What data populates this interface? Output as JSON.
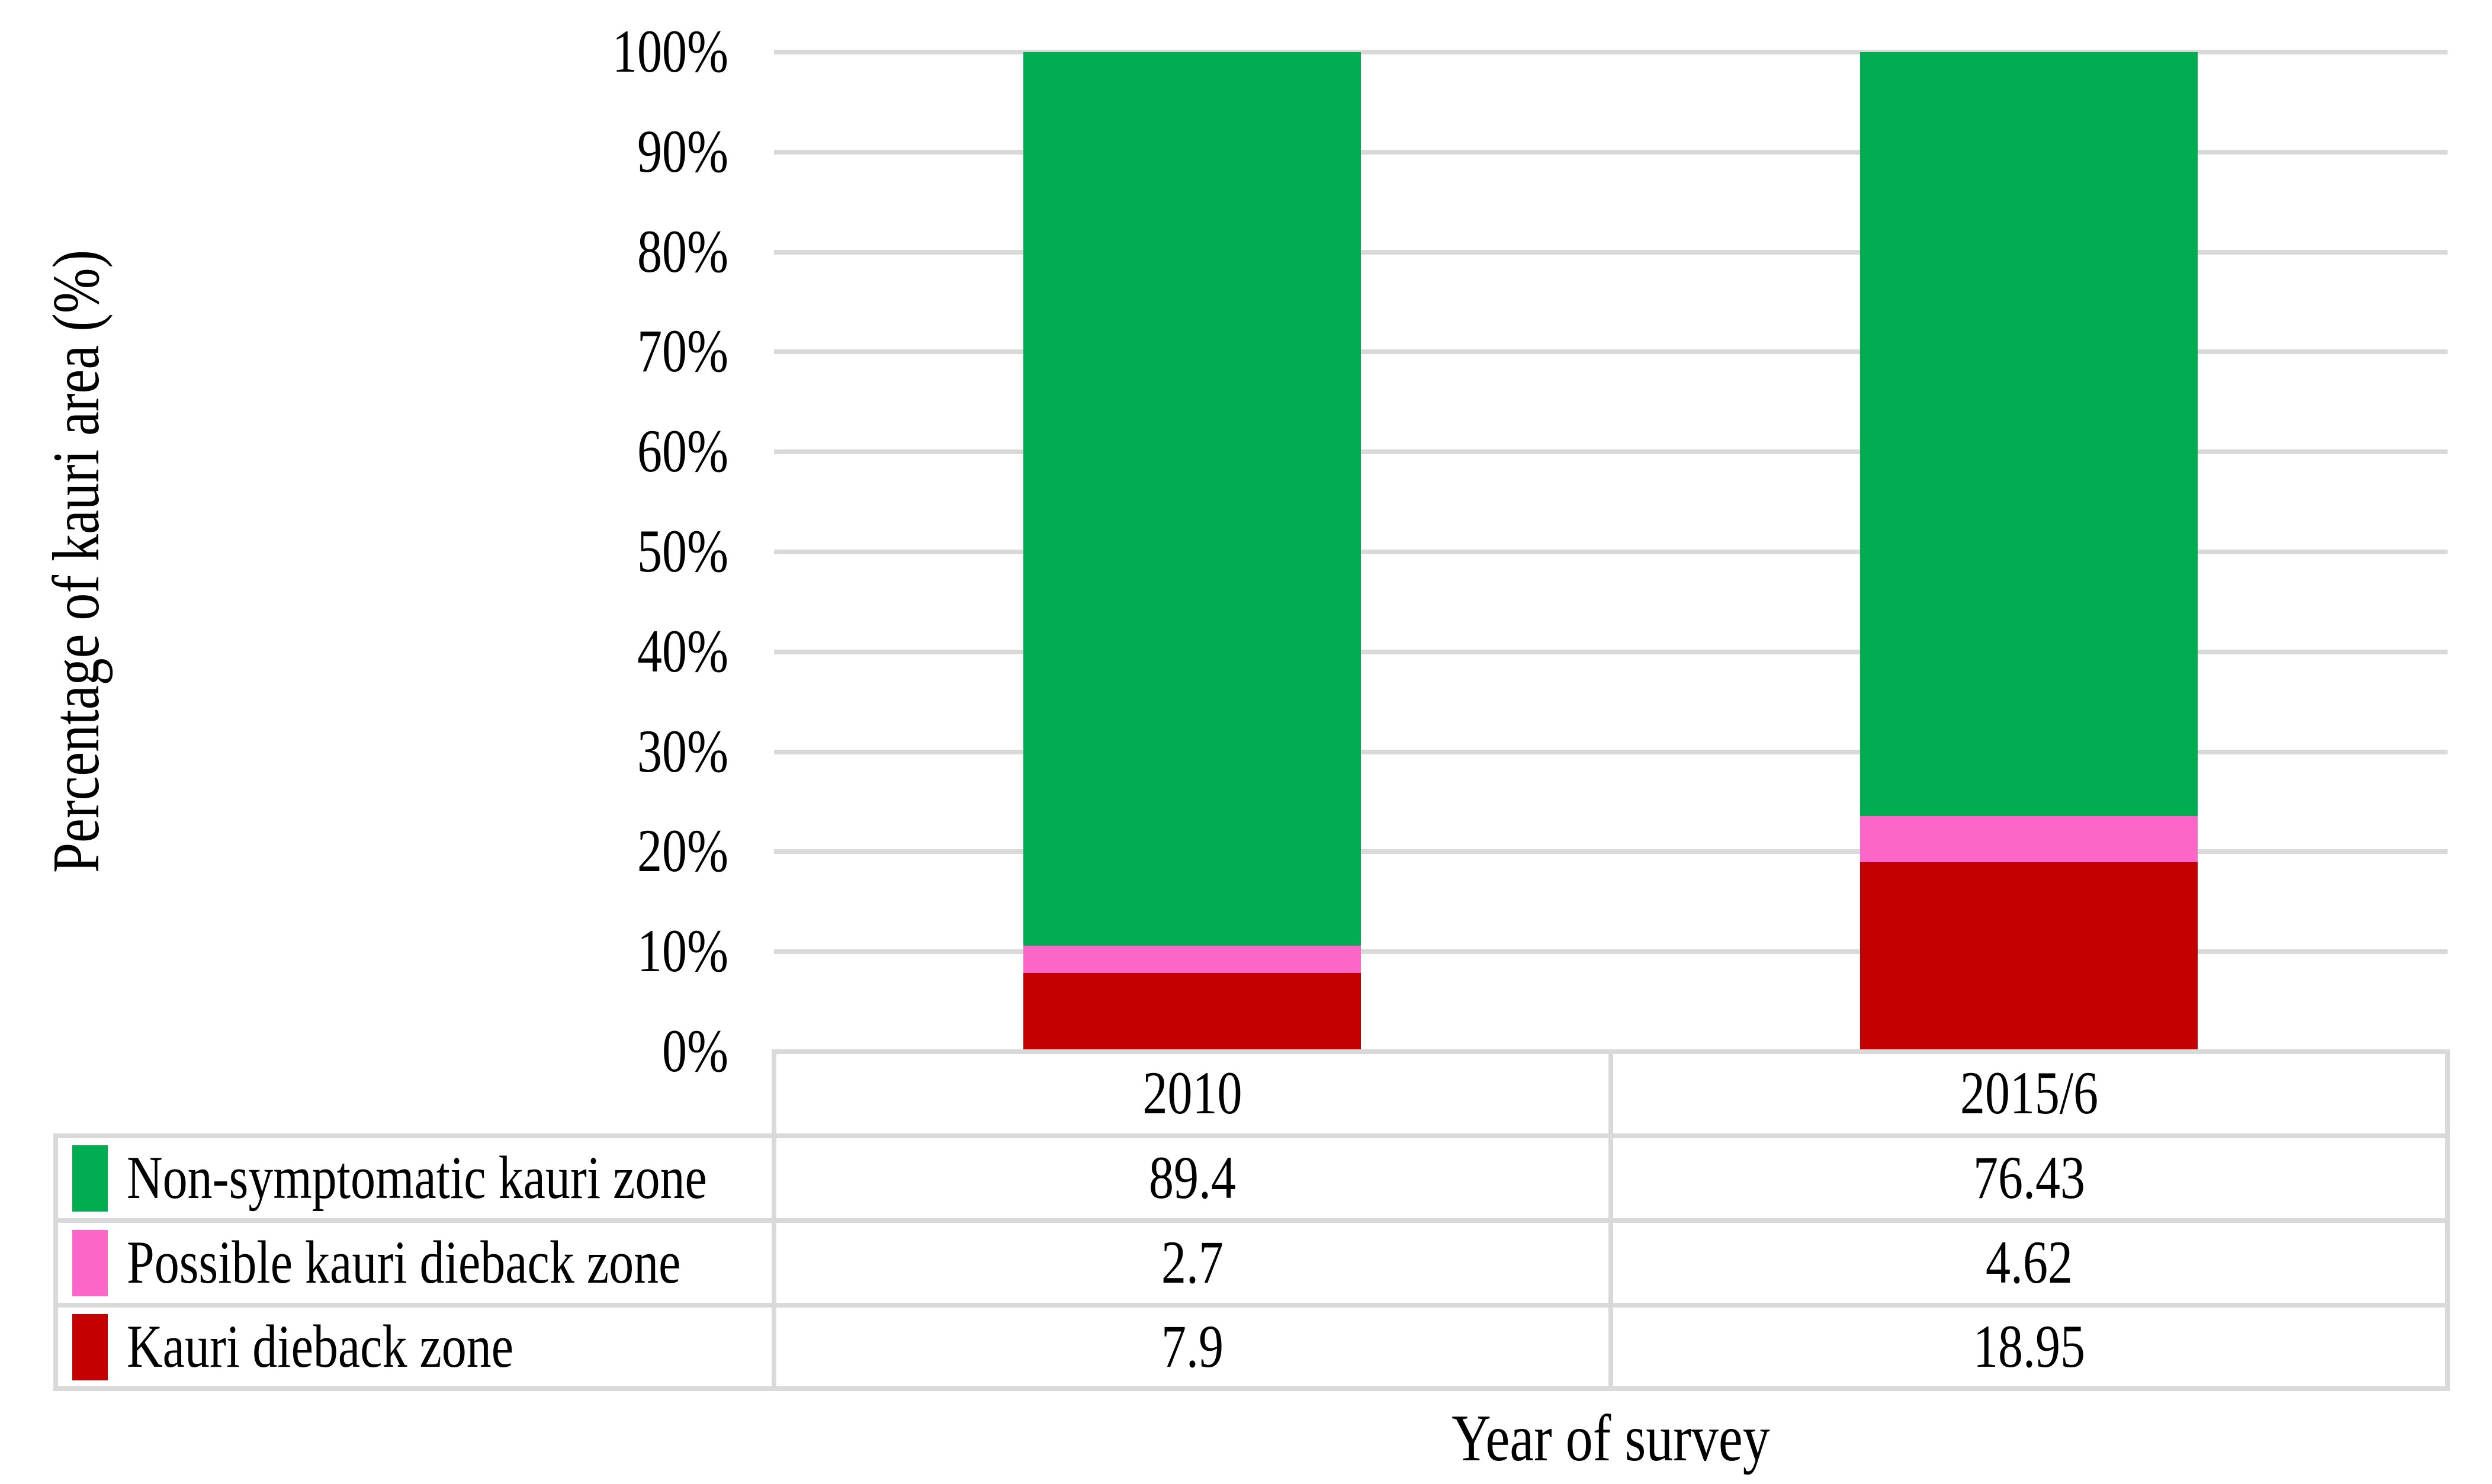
{
  "figure": {
    "background": "#FFFFFF",
    "text_color": "#000000"
  },
  "chart_data": {
    "type": "bar",
    "stacked": true,
    "title": "",
    "xlabel": "Year of survey",
    "ylabel": "Percentage of kauri area (%)",
    "categories": [
      "2010",
      "2015/6"
    ],
    "series": [
      {
        "name": "Non-symptomatic kauri zone",
        "color": "#00AD51",
        "values": [
          89.4,
          76.43
        ],
        "display_values": [
          "89.4",
          "76.43"
        ]
      },
      {
        "name": "Possible kauri dieback zone",
        "color": "#FC66C9",
        "values": [
          2.7,
          4.62
        ],
        "display_values": [
          "2.7",
          "4.62"
        ]
      },
      {
        "name": "Kauri dieback zone",
        "color": "#C40000",
        "values": [
          7.9,
          18.95
        ],
        "display_values": [
          "7.9",
          "18.95"
        ]
      }
    ],
    "ylim": [
      0,
      100
    ],
    "ytick_labels": [
      "0%",
      "10%",
      "20%",
      "30%",
      "40%",
      "50%",
      "60%",
      "70%",
      "80%",
      "90%",
      "100%"
    ],
    "grid": "horizontal",
    "gridline_color": "#D9D9D9",
    "legend_position": "data-table-left",
    "data_table_shown": true
  }
}
